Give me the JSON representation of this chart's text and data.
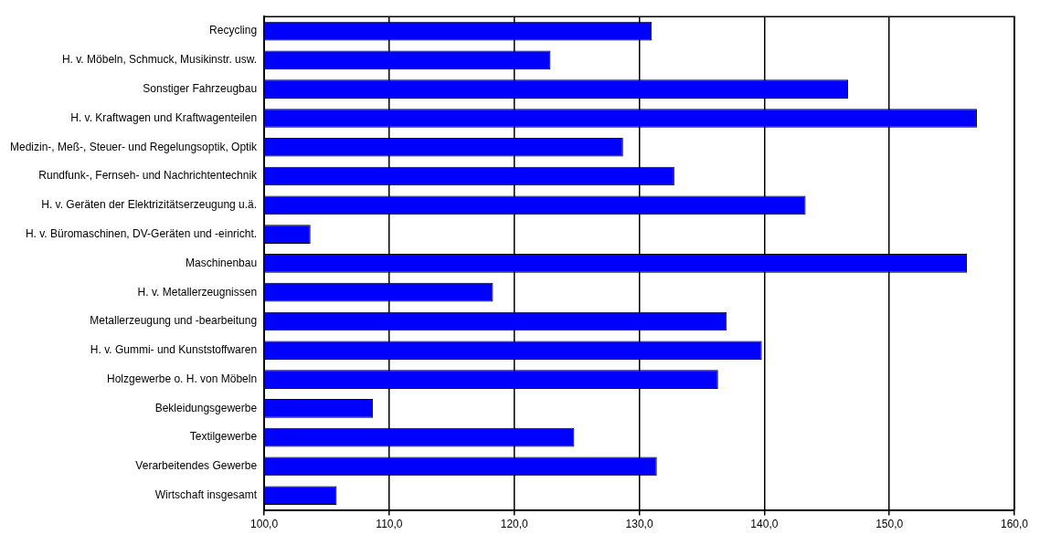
{
  "chart_data": {
    "type": "bar",
    "orientation": "horizontal",
    "categories": [
      "Recycling",
      "H. v. Möbeln, Schmuck, Musikinstr. usw.",
      "Sonstiger Fahrzeugbau",
      "H. v. Kraftwagen und Kraftwagenteilen",
      "Medizin-, Meß-, Steuer- und Regelungsoptik, Optik",
      "Rundfunk-, Fernseh- und Nachrichtentechnik",
      "H. v. Geräten der Elektrizitätserzeugung u.ä.",
      "H. v. Büromaschinen, DV-Geräten und -einricht.",
      "Maschinenbau",
      "H. v. Metallerzeugnissen",
      "Metallerzeugung und -bearbeitung",
      "H. v. Gummi- und Kunststoffwaren",
      "Holzgewerbe o. H. von Möbeln",
      "Bekleidungsgewerbe",
      "Textilgewerbe",
      "Verarbeitendes Gewerbe",
      "Wirtschaft insgesamt"
    ],
    "values": [
      131.0,
      122.9,
      146.7,
      157.0,
      128.7,
      132.8,
      143.3,
      103.7,
      156.2,
      118.3,
      137.0,
      139.8,
      136.3,
      108.7,
      124.8,
      131.4,
      105.8
    ],
    "color": "#0000ff",
    "xlim": [
      100,
      160
    ],
    "xticks": [
      {
        "value": 100,
        "label": "100,0"
      },
      {
        "value": 110,
        "label": "110,0"
      },
      {
        "value": 120,
        "label": "120,0"
      },
      {
        "value": 130,
        "label": "130,0"
      },
      {
        "value": 140,
        "label": "140,0"
      },
      {
        "value": 150,
        "label": "150,0"
      },
      {
        "value": 160,
        "label": "160,0"
      }
    ],
    "grid": "x",
    "legend": false
  }
}
